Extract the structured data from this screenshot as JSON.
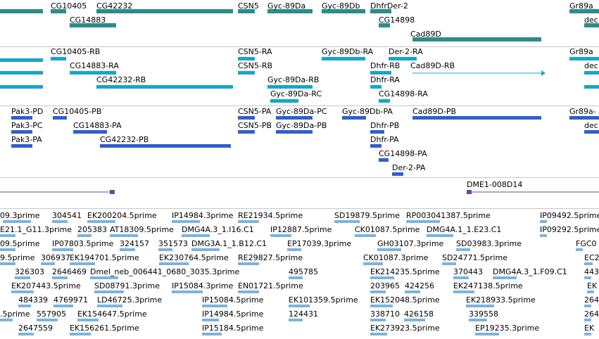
{
  "tracks": {
    "genes": {
      "labels": [
        "CG10405",
        "CG42232",
        "CSN5",
        "Gyc-89Da",
        "Gyc-89Db",
        "DhfrDer-2",
        "Gr89a",
        "CG14883",
        "CG14898",
        "Cad89D",
        "dec"
      ]
    },
    "transcripts_ra": {
      "labels": [
        "CG10405-RB",
        "CSN5-RA",
        "Gyc-89Db-RA",
        "Der-2-RA",
        "Gr89a",
        "CG14883-RA",
        "CSN5-RB",
        "Dhfr-RB",
        "Cad89D-RB",
        "dec",
        "CG42232-RB",
        "Gyc-89Da-RB",
        "Dhfr-RA",
        "Gyc-89Da-RC",
        "CG14898-RA"
      ]
    },
    "proteins": {
      "labels": [
        "Pak3-PD",
        "CG10405-PB",
        "CSN5-PA",
        "Gyc-89Da-PC",
        "Gyc-89Db-PA",
        "Cad89D-PB",
        "Gr89a-",
        "Pak3-PC",
        "CG14883-PA",
        "CSN5-PB",
        "Gyc-89Da-PB",
        "Dhfr-PB",
        "dec",
        "Pak3-PA",
        "CG42232-PB",
        "Dhfr-PA",
        "CG14898-PA",
        "Der-2-PA"
      ]
    },
    "transposon": {
      "labels": [
        "DME1-008D14"
      ]
    },
    "est": {
      "labels": [
        "09.3prime",
        "304541",
        "EK200204.5prime",
        "IP14984.3prime",
        "RE21934.5prime",
        "SD19879.5prime",
        "RP003041387.5prime",
        "IP09492.5prime",
        "E21.1_G11.3prime",
        "205383",
        "AT18309.5prime",
        "DMG4A.3_1.I16.C1",
        "IP12887.5prime",
        "CK01087.5prime",
        "DMG4A.1_1.E23.C1",
        "IP09292.5prime",
        "09.5prime",
        "IP07803.5prime",
        "324157",
        "351573",
        "DMG3A.1_1.B12.C1",
        "EP17039.3prime",
        "GH03107.3prime",
        "SD03983.3prime",
        "FGC0",
        "9.5prime",
        "306937",
        "EK194701.5prime",
        "EK230764.5prime",
        "RE29827.5prime",
        "CK01087.3prime",
        "SD24771.5prime",
        "EC2",
        "326303",
        "2646469",
        "Dmel_neb_006441_0680_3035.3prime",
        "495785",
        "EK214235.5prime",
        "370443",
        "DMG4A.3_1.F09.C1",
        "443",
        "EK207443.5prime",
        "SD08791.3prime",
        "IP15084.3prime",
        "EN01721.5prime",
        "203965",
        "424256",
        "EK247138.5prime",
        "EK",
        "484339",
        "4769971",
        "LD46725.3prime",
        "IP15084.5prime",
        "EK101359.5prime",
        "EK152048.5prime",
        "EK218933.5prime",
        "264",
        ".5prime",
        "557905",
        "EK154647.5prime",
        "IP14984.5prime",
        "124431",
        "338710",
        "426158",
        "339558",
        "264",
        "2647559",
        "EK156261.5prime",
        "IP15184.5prime",
        "EK273923.5prime",
        "EP19235.3prime",
        "EK"
      ]
    }
  },
  "colors": {
    "gene": "#2a8c8c",
    "transcript": "#17a6c8",
    "protein": "#2f5fcf",
    "transposon": "#6a4aa6",
    "est": "#7ab4dd",
    "divider": "#c8c8c8"
  }
}
